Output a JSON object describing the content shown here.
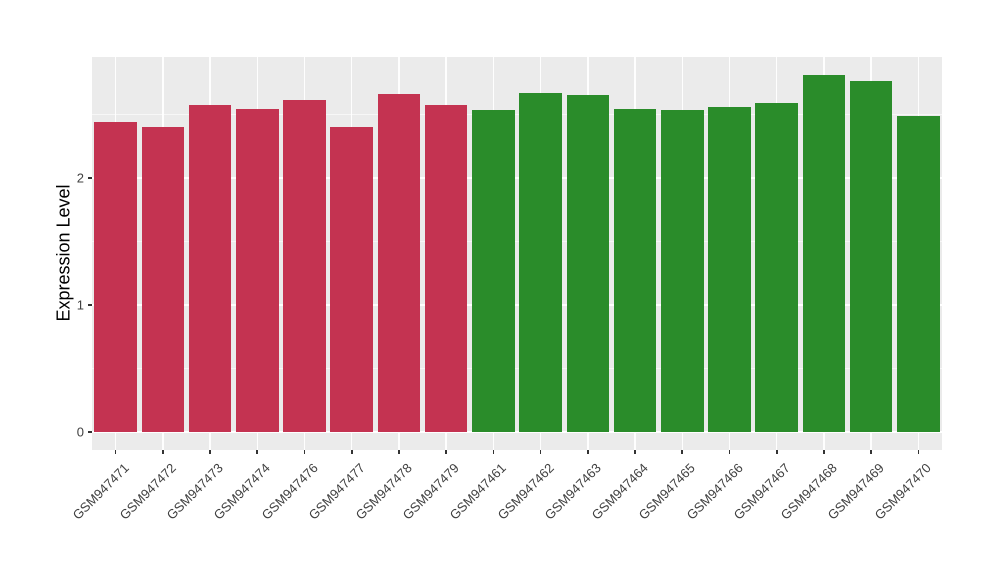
{
  "chart_data": {
    "type": "bar",
    "title": "",
    "xlabel": "",
    "ylabel": "Expression Level",
    "categories": [
      "GSM947471",
      "GSM947472",
      "GSM947473",
      "GSM947474",
      "GSM947476",
      "GSM947477",
      "GSM947478",
      "GSM947479",
      "GSM947461",
      "GSM947462",
      "GSM947463",
      "GSM947464",
      "GSM947465",
      "GSM947466",
      "GSM947467",
      "GSM947468",
      "GSM947469",
      "GSM947470"
    ],
    "values": [
      2.44,
      2.4,
      2.57,
      2.54,
      2.61,
      2.4,
      2.66,
      2.57,
      2.53,
      2.67,
      2.65,
      2.54,
      2.53,
      2.56,
      2.59,
      2.81,
      2.76,
      2.49
    ],
    "bar_groups": [
      "A",
      "A",
      "A",
      "A",
      "A",
      "A",
      "A",
      "A",
      "B",
      "B",
      "B",
      "B",
      "B",
      "B",
      "B",
      "B",
      "B",
      "B"
    ],
    "group_colors": {
      "A": "#C43351",
      "B": "#2A8C2A"
    },
    "y_ticks": [
      0,
      1,
      2
    ],
    "y_minor_ticks": [
      0.5,
      1.5,
      2.5
    ],
    "ylim": [
      -0.14,
      2.95
    ],
    "bar_width_fraction": 0.9,
    "legend": "none",
    "grid": true,
    "style": {
      "panel_bg": "#EBEBEB",
      "grid_color": "#FFFFFF",
      "tick_mark_color": "#333333",
      "axis_text_color": "#404040",
      "figure_bg": "#FFFFFF"
    }
  }
}
